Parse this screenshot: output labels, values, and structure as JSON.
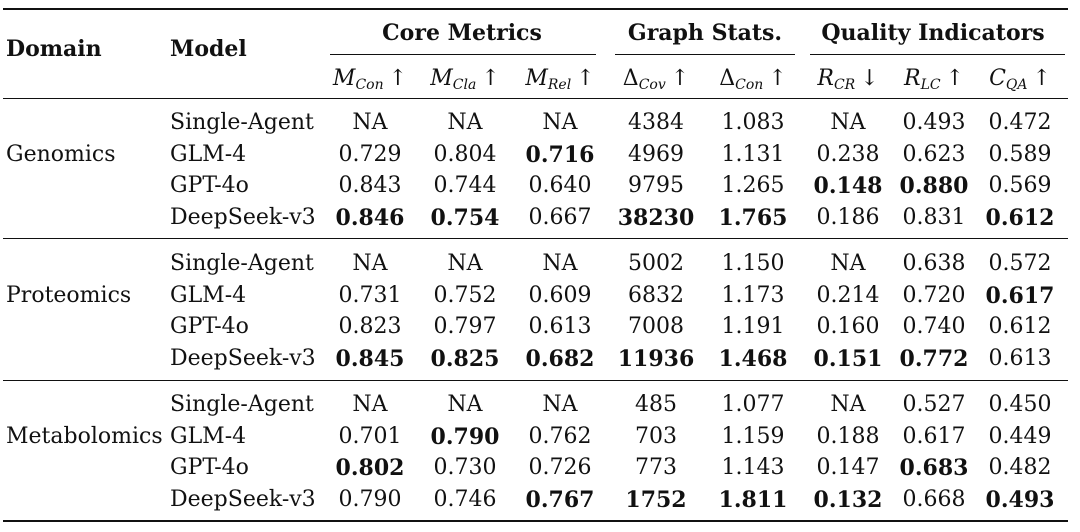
{
  "headers": {
    "domain": "Domain",
    "model": "Model",
    "groups": [
      {
        "label": "Core Metrics"
      },
      {
        "label": "Graph Stats."
      },
      {
        "label": "Quality Indicators"
      }
    ],
    "columns": [
      {
        "main": "M",
        "sub": "Con",
        "arrow": "↑"
      },
      {
        "main": "M",
        "sub": "Cla",
        "arrow": "↑"
      },
      {
        "main": "M",
        "sub": "Rel",
        "arrow": "↑"
      },
      {
        "main": "Δ",
        "sub": "Cov",
        "arrow": "↑"
      },
      {
        "main": "Δ",
        "sub": "Con",
        "arrow": "↑"
      },
      {
        "main": "R",
        "sub": "CR",
        "arrow": "↓"
      },
      {
        "main": "R",
        "sub": "LC",
        "arrow": "↑"
      },
      {
        "main": "C",
        "sub": "QA",
        "arrow": "↑"
      }
    ]
  },
  "sections": [
    {
      "domain": "Genomics",
      "rows": [
        {
          "model": "Single-Agent",
          "values": [
            "NA",
            "NA",
            "NA",
            "4384",
            "1.083",
            "NA",
            "0.493",
            "0.472"
          ],
          "bold": [
            false,
            false,
            false,
            false,
            false,
            false,
            false,
            false
          ]
        },
        {
          "model": "GLM-4",
          "values": [
            "0.729",
            "0.804",
            "0.716",
            "4969",
            "1.131",
            "0.238",
            "0.623",
            "0.589"
          ],
          "bold": [
            false,
            false,
            true,
            false,
            false,
            false,
            false,
            false
          ]
        },
        {
          "model": "GPT-4o",
          "values": [
            "0.843",
            "0.744",
            "0.640",
            "9795",
            "1.265",
            "0.148",
            "0.880",
            "0.569"
          ],
          "bold": [
            false,
            false,
            false,
            false,
            false,
            true,
            true,
            false
          ]
        },
        {
          "model": "DeepSeek-v3",
          "values": [
            "0.846",
            "0.754",
            "0.667",
            "38230",
            "1.765",
            "0.186",
            "0.831",
            "0.612"
          ],
          "bold": [
            true,
            true,
            false,
            true,
            true,
            false,
            false,
            true
          ]
        }
      ]
    },
    {
      "domain": "Proteomics",
      "rows": [
        {
          "model": "Single-Agent",
          "values": [
            "NA",
            "NA",
            "NA",
            "5002",
            "1.150",
            "NA",
            "0.638",
            "0.572"
          ],
          "bold": [
            false,
            false,
            false,
            false,
            false,
            false,
            false,
            false
          ]
        },
        {
          "model": "GLM-4",
          "values": [
            "0.731",
            "0.752",
            "0.609",
            "6832",
            "1.173",
            "0.214",
            "0.720",
            "0.617"
          ],
          "bold": [
            false,
            false,
            false,
            false,
            false,
            false,
            false,
            true
          ]
        },
        {
          "model": "GPT-4o",
          "values": [
            "0.823",
            "0.797",
            "0.613",
            "7008",
            "1.191",
            "0.160",
            "0.740",
            "0.612"
          ],
          "bold": [
            false,
            false,
            false,
            false,
            false,
            false,
            false,
            false
          ]
        },
        {
          "model": "DeepSeek-v3",
          "values": [
            "0.845",
            "0.825",
            "0.682",
            "11936",
            "1.468",
            "0.151",
            "0.772",
            "0.613"
          ],
          "bold": [
            true,
            true,
            true,
            true,
            true,
            true,
            true,
            false
          ]
        }
      ]
    },
    {
      "domain": "Metabolomics",
      "rows": [
        {
          "model": "Single-Agent",
          "values": [
            "NA",
            "NA",
            "NA",
            "485",
            "1.077",
            "NA",
            "0.527",
            "0.450"
          ],
          "bold": [
            false,
            false,
            false,
            false,
            false,
            false,
            false,
            false
          ]
        },
        {
          "model": "GLM-4",
          "values": [
            "0.701",
            "0.790",
            "0.762",
            "703",
            "1.159",
            "0.188",
            "0.617",
            "0.449"
          ],
          "bold": [
            false,
            true,
            false,
            false,
            false,
            false,
            false,
            false
          ]
        },
        {
          "model": "GPT-4o",
          "values": [
            "0.802",
            "0.730",
            "0.726",
            "773",
            "1.143",
            "0.147",
            "0.683",
            "0.482"
          ],
          "bold": [
            true,
            false,
            false,
            false,
            false,
            false,
            true,
            false
          ]
        },
        {
          "model": "DeepSeek-v3",
          "values": [
            "0.790",
            "0.746",
            "0.767",
            "1752",
            "1.811",
            "0.132",
            "0.668",
            "0.493"
          ],
          "bold": [
            false,
            false,
            true,
            true,
            true,
            true,
            false,
            true
          ]
        }
      ]
    }
  ]
}
